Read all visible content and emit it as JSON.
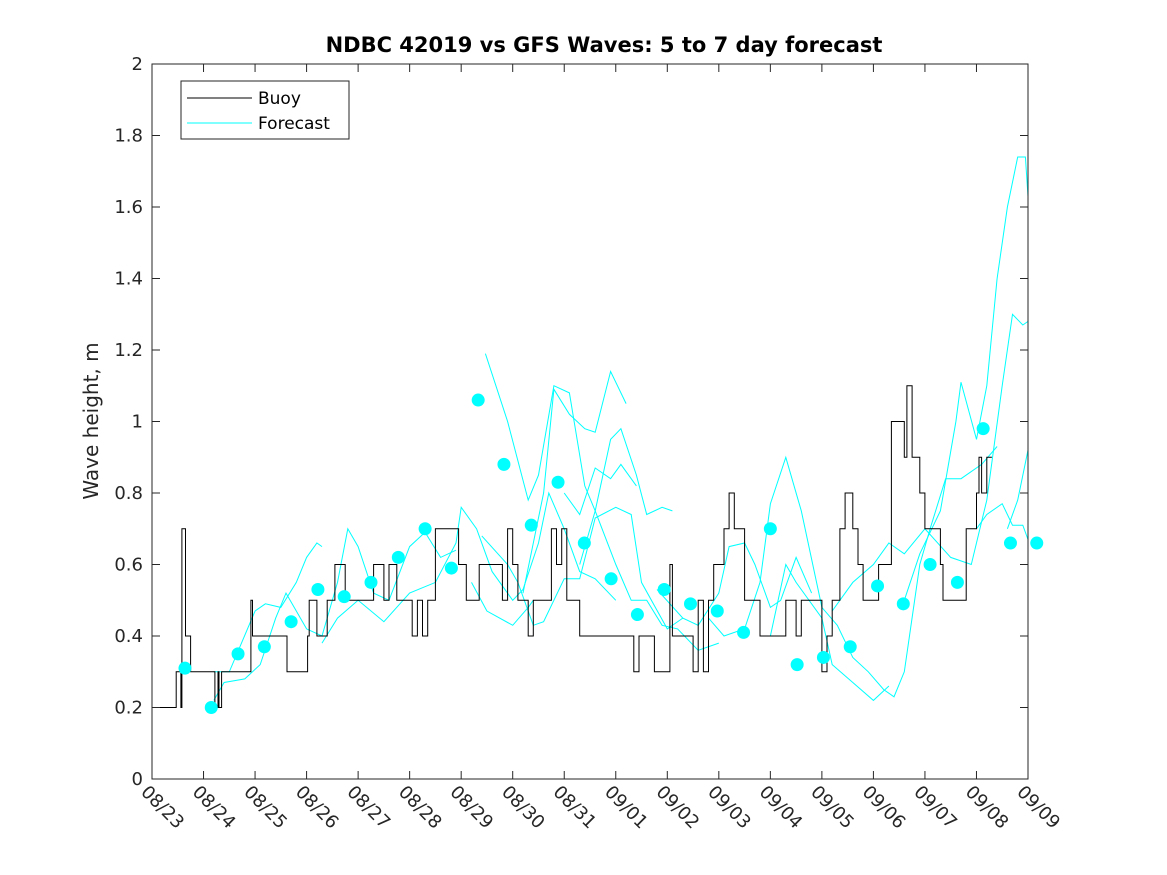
{
  "chart_data": {
    "type": "line",
    "title": "NDBC 42019 vs GFS Waves: 5 to 7 day forecast",
    "xlabel": "",
    "ylabel": "Wave height, m",
    "x_units": "days since 08/23",
    "xlim": [
      0,
      17
    ],
    "ylim": [
      0,
      2
    ],
    "x_tick_labels": [
      "08/23",
      "08/24",
      "08/25",
      "08/26",
      "08/27",
      "08/28",
      "08/29",
      "08/30",
      "08/31",
      "09/01",
      "09/02",
      "09/03",
      "09/04",
      "09/05",
      "09/06",
      "09/07",
      "09/08",
      "09/09"
    ],
    "y_ticks": [
      0,
      0.2,
      0.4,
      0.6,
      0.8,
      1,
      1.2,
      1.4,
      1.6,
      1.8,
      2
    ],
    "y_tick_labels": [
      "0",
      "0.2",
      "0.4",
      "0.6",
      "0.8",
      "1",
      "1.2",
      "1.4",
      "1.6",
      "1.8",
      "2"
    ],
    "grid": false,
    "legend": {
      "placement": "top-left",
      "entries": [
        "Buoy",
        "Forecast"
      ]
    },
    "colors": {
      "buoy": "#000000",
      "forecast": "#00ffff",
      "points": "#00ffff"
    },
    "buoy": [
      [
        0,
        0.2
      ],
      [
        0.45,
        0.2
      ],
      [
        0.47,
        0.3
      ],
      [
        0.55,
        0.3
      ],
      [
        0.56,
        0.2
      ],
      [
        0.58,
        0.7
      ],
      [
        0.65,
        0.4
      ],
      [
        0.72,
        0.4
      ],
      [
        0.75,
        0.3
      ],
      [
        1.2,
        0.3
      ],
      [
        1.22,
        0.2
      ],
      [
        1.28,
        0.3
      ],
      [
        1.3,
        0.2
      ],
      [
        1.35,
        0.3
      ],
      [
        1.9,
        0.3
      ],
      [
        1.92,
        0.5
      ],
      [
        1.95,
        0.4
      ],
      [
        2.6,
        0.4
      ],
      [
        2.62,
        0.3
      ],
      [
        3.0,
        0.3
      ],
      [
        3.02,
        0.4
      ],
      [
        3.05,
        0.5
      ],
      [
        3.2,
        0.4
      ],
      [
        3.4,
        0.5
      ],
      [
        3.5,
        0.5
      ],
      [
        3.55,
        0.6
      ],
      [
        3.75,
        0.5
      ],
      [
        4.2,
        0.5
      ],
      [
        4.3,
        0.6
      ],
      [
        4.5,
        0.5
      ],
      [
        4.6,
        0.6
      ],
      [
        4.75,
        0.5
      ],
      [
        5.0,
        0.5
      ],
      [
        5.05,
        0.4
      ],
      [
        5.15,
        0.5
      ],
      [
        5.25,
        0.4
      ],
      [
        5.35,
        0.5
      ],
      [
        5.5,
        0.7
      ],
      [
        5.9,
        0.7
      ],
      [
        5.95,
        0.6
      ],
      [
        6.1,
        0.5
      ],
      [
        6.3,
        0.5
      ],
      [
        6.35,
        0.6
      ],
      [
        6.6,
        0.6
      ],
      [
        6.8,
        0.5
      ],
      [
        6.9,
        0.7
      ],
      [
        7.0,
        0.6
      ],
      [
        7.1,
        0.5
      ],
      [
        7.25,
        0.5
      ],
      [
        7.3,
        0.4
      ],
      [
        7.4,
        0.5
      ],
      [
        7.6,
        0.5
      ],
      [
        7.75,
        0.7
      ],
      [
        7.85,
        0.6
      ],
      [
        7.95,
        0.7
      ],
      [
        8.05,
        0.5
      ],
      [
        8.2,
        0.5
      ],
      [
        8.3,
        0.4
      ],
      [
        9.3,
        0.4
      ],
      [
        9.35,
        0.3
      ],
      [
        9.45,
        0.4
      ],
      [
        9.7,
        0.4
      ],
      [
        9.75,
        0.3
      ],
      [
        10.0,
        0.3
      ],
      [
        10.05,
        0.6
      ],
      [
        10.1,
        0.4
      ],
      [
        10.4,
        0.4
      ],
      [
        10.5,
        0.3
      ],
      [
        10.6,
        0.5
      ],
      [
        10.7,
        0.3
      ],
      [
        10.8,
        0.5
      ],
      [
        10.9,
        0.6
      ],
      [
        11.0,
        0.6
      ],
      [
        11.1,
        0.7
      ],
      [
        11.2,
        0.8
      ],
      [
        11.3,
        0.7
      ],
      [
        11.5,
        0.5
      ],
      [
        11.8,
        0.4
      ],
      [
        12.2,
        0.4
      ],
      [
        12.3,
        0.5
      ],
      [
        12.5,
        0.4
      ],
      [
        12.6,
        0.5
      ],
      [
        12.95,
        0.5
      ],
      [
        13.0,
        0.3
      ],
      [
        13.1,
        0.4
      ],
      [
        13.2,
        0.5
      ],
      [
        13.35,
        0.7
      ],
      [
        13.45,
        0.8
      ],
      [
        13.6,
        0.7
      ],
      [
        13.7,
        0.6
      ],
      [
        13.8,
        0.5
      ],
      [
        14.0,
        0.5
      ],
      [
        14.1,
        0.6
      ],
      [
        14.35,
        1.0
      ],
      [
        14.55,
        1.0
      ],
      [
        14.6,
        0.9
      ],
      [
        14.65,
        1.1
      ],
      [
        14.75,
        0.9
      ],
      [
        14.9,
        0.8
      ],
      [
        15.0,
        0.7
      ],
      [
        15.2,
        0.7
      ],
      [
        15.3,
        0.6
      ],
      [
        15.35,
        0.5
      ],
      [
        15.7,
        0.5
      ],
      [
        15.8,
        0.7
      ],
      [
        16.0,
        0.8
      ],
      [
        16.05,
        0.9
      ],
      [
        16.1,
        0.8
      ],
      [
        16.2,
        0.9
      ],
      [
        16.3,
        0.9
      ]
    ],
    "forecast_runs": [
      [
        [
          1.2,
          0.3
        ],
        [
          1.5,
          0.3
        ],
        [
          2.0,
          0.47
        ],
        [
          2.2,
          0.49
        ],
        [
          2.5,
          0.48
        ],
        [
          2.8,
          0.55
        ],
        [
          3.0,
          0.62
        ],
        [
          3.2,
          0.66
        ],
        [
          3.3,
          0.65
        ]
      ],
      [
        [
          1.2,
          0.22
        ],
        [
          1.4,
          0.27
        ],
        [
          1.8,
          0.28
        ],
        [
          2.1,
          0.32
        ],
        [
          2.4,
          0.45
        ],
        [
          2.6,
          0.52
        ],
        [
          3.0,
          0.42
        ],
        [
          3.3,
          0.4
        ],
        [
          3.6,
          0.55
        ],
        [
          3.8,
          0.7
        ],
        [
          4.0,
          0.65
        ],
        [
          4.3,
          0.52
        ],
        [
          4.6,
          0.5
        ],
        [
          5.0,
          0.65
        ],
        [
          5.3,
          0.69
        ],
        [
          5.6,
          0.62
        ],
        [
          5.9,
          0.64
        ]
      ],
      [
        [
          3.3,
          0.38
        ],
        [
          3.6,
          0.45
        ],
        [
          4.0,
          0.5
        ],
        [
          4.5,
          0.44
        ],
        [
          5.0,
          0.52
        ],
        [
          5.5,
          0.55
        ],
        [
          5.9,
          0.66
        ],
        [
          6.0,
          0.76
        ],
        [
          6.3,
          0.7
        ],
        [
          6.6,
          0.58
        ],
        [
          7.0,
          0.5
        ],
        [
          7.2,
          0.53
        ],
        [
          7.5,
          0.66
        ],
        [
          7.7,
          0.8
        ],
        [
          8.0,
          0.7
        ],
        [
          8.3,
          0.58
        ],
        [
          8.6,
          0.56
        ],
        [
          9.0,
          0.5
        ]
      ],
      [
        [
          6.4,
          0.68
        ],
        [
          6.9,
          0.6
        ],
        [
          7.1,
          0.55
        ],
        [
          7.4,
          0.43
        ],
        [
          7.6,
          0.44
        ],
        [
          8.0,
          0.56
        ],
        [
          8.3,
          0.56
        ],
        [
          8.6,
          0.73
        ],
        [
          9.0,
          0.76
        ],
        [
          9.3,
          0.74
        ],
        [
          9.5,
          0.55
        ],
        [
          10.0,
          0.42
        ],
        [
          10.3,
          0.45
        ]
      ],
      [
        [
          6.2,
          0.55
        ],
        [
          6.5,
          0.47
        ],
        [
          7.0,
          0.43
        ],
        [
          7.3,
          0.48
        ],
        [
          7.4,
          0.5
        ]
      ],
      [
        [
          6.47,
          1.19
        ],
        [
          6.9,
          1.0
        ],
        [
          7.3,
          0.78
        ],
        [
          7.5,
          0.85
        ],
        [
          7.8,
          1.1
        ],
        [
          8.1,
          1.08
        ],
        [
          8.4,
          0.82
        ],
        [
          8.6,
          0.75
        ],
        [
          8.9,
          0.95
        ],
        [
          9.1,
          0.98
        ],
        [
          9.4,
          0.85
        ],
        [
          9.6,
          0.74
        ],
        [
          9.9,
          0.76
        ],
        [
          10.1,
          0.75
        ]
      ],
      [
        [
          7.2,
          0.52
        ],
        [
          7.6,
          0.8
        ],
        [
          7.8,
          1.09
        ],
        [
          8.1,
          1.02
        ],
        [
          8.4,
          0.98
        ],
        [
          8.6,
          0.97
        ],
        [
          8.9,
          1.14
        ],
        [
          9.2,
          1.05
        ]
      ],
      [
        [
          8.0,
          0.8
        ],
        [
          8.3,
          0.74
        ],
        [
          8.6,
          0.87
        ],
        [
          8.9,
          0.84
        ],
        [
          9.1,
          0.88
        ],
        [
          9.4,
          0.82
        ]
      ],
      [
        [
          8.3,
          0.6
        ],
        [
          8.6,
          0.75
        ],
        [
          9.0,
          0.6
        ],
        [
          9.3,
          0.5
        ],
        [
          9.6,
          0.5
        ],
        [
          9.9,
          0.43
        ],
        [
          10.2,
          0.42
        ],
        [
          10.6,
          0.36
        ],
        [
          11.0,
          0.38
        ]
      ],
      [
        [
          9.8,
          0.53
        ],
        [
          10.3,
          0.45
        ],
        [
          10.6,
          0.43
        ],
        [
          11.0,
          0.52
        ],
        [
          11.2,
          0.65
        ],
        [
          11.5,
          0.66
        ],
        [
          11.7,
          0.6
        ],
        [
          12.0,
          0.48
        ],
        [
          12.2,
          0.5
        ],
        [
          12.5,
          0.62
        ],
        [
          12.8,
          0.52
        ]
      ],
      [
        [
          10.8,
          0.45
        ],
        [
          11.1,
          0.4
        ],
        [
          11.5,
          0.42
        ],
        [
          11.8,
          0.55
        ],
        [
          12.0,
          0.77
        ],
        [
          12.3,
          0.9
        ],
        [
          12.6,
          0.75
        ],
        [
          13.0,
          0.48
        ],
        [
          13.3,
          0.43
        ],
        [
          13.6,
          0.34
        ],
        [
          13.9,
          0.3
        ],
        [
          14.2,
          0.25
        ],
        [
          14.4,
          0.23
        ],
        [
          14.6,
          0.3
        ],
        [
          14.9,
          0.6
        ],
        [
          15.1,
          0.7
        ],
        [
          15.4,
          0.84
        ],
        [
          15.7,
          0.84
        ],
        [
          16.1,
          0.88
        ],
        [
          16.4,
          0.93
        ]
      ],
      [
        [
          12.0,
          0.4
        ],
        [
          12.3,
          0.6
        ],
        [
          12.5,
          0.55
        ],
        [
          13.0,
          0.45
        ],
        [
          13.2,
          0.32
        ],
        [
          13.6,
          0.27
        ],
        [
          14.0,
          0.22
        ],
        [
          14.3,
          0.26
        ]
      ],
      [
        [
          13.2,
          0.47
        ],
        [
          13.6,
          0.55
        ],
        [
          14.0,
          0.6
        ],
        [
          14.3,
          0.66
        ],
        [
          14.6,
          0.63
        ],
        [
          15.0,
          0.7
        ],
        [
          15.5,
          0.62
        ],
        [
          15.9,
          0.6
        ],
        [
          16.2,
          0.78
        ],
        [
          16.5,
          1.1
        ],
        [
          16.7,
          1.3
        ],
        [
          16.9,
          1.27
        ],
        [
          17.0,
          1.28
        ],
        [
          17.0,
          1.22
        ]
      ],
      [
        [
          14.6,
          0.5
        ],
        [
          14.9,
          0.63
        ],
        [
          15.3,
          0.75
        ],
        [
          15.6,
          1.0
        ],
        [
          15.7,
          1.11
        ],
        [
          16.0,
          0.95
        ],
        [
          16.2,
          1.1
        ],
        [
          16.4,
          1.4
        ],
        [
          16.6,
          1.6
        ],
        [
          16.8,
          1.74
        ],
        [
          16.95,
          1.74
        ],
        [
          17.0,
          1.63
        ]
      ],
      [
        [
          16.0,
          0.7
        ],
        [
          16.2,
          0.74
        ],
        [
          16.5,
          0.77
        ],
        [
          16.7,
          0.71
        ],
        [
          16.9,
          0.71
        ],
        [
          17.0,
          0.67
        ]
      ],
      [
        [
          16.6,
          0.7
        ],
        [
          16.8,
          0.78
        ],
        [
          17.0,
          0.92
        ]
      ]
    ],
    "points": [
      [
        0.64,
        0.31
      ],
      [
        1.15,
        0.2
      ],
      [
        1.67,
        0.35
      ],
      [
        2.18,
        0.37
      ],
      [
        2.7,
        0.44
      ],
      [
        3.22,
        0.53
      ],
      [
        3.73,
        0.51
      ],
      [
        4.25,
        0.55
      ],
      [
        4.78,
        0.62
      ],
      [
        5.3,
        0.7
      ],
      [
        5.81,
        0.59
      ],
      [
        6.33,
        1.06
      ],
      [
        6.83,
        0.88
      ],
      [
        7.36,
        0.71
      ],
      [
        7.88,
        0.83
      ],
      [
        8.39,
        0.66
      ],
      [
        8.91,
        0.56
      ],
      [
        9.42,
        0.46
      ],
      [
        9.94,
        0.53
      ],
      [
        10.45,
        0.49
      ],
      [
        10.97,
        0.47
      ],
      [
        11.48,
        0.41
      ],
      [
        12.0,
        0.7
      ],
      [
        12.52,
        0.32
      ],
      [
        13.03,
        0.34
      ],
      [
        13.55,
        0.37
      ],
      [
        14.08,
        0.54
      ],
      [
        14.58,
        0.49
      ],
      [
        15.1,
        0.6
      ],
      [
        15.63,
        0.55
      ],
      [
        16.13,
        0.98
      ],
      [
        16.66,
        0.66
      ],
      [
        17.17,
        0.66
      ]
    ]
  }
}
